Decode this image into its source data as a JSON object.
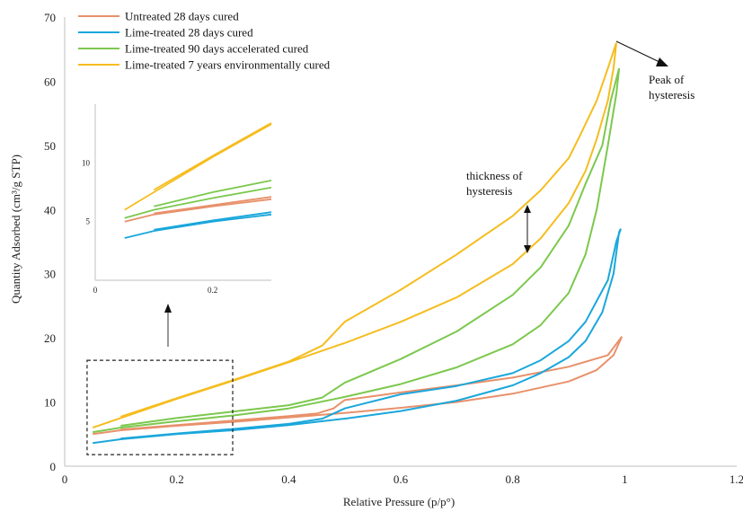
{
  "chart_data": {
    "type": "line",
    "xlabel": "Relative Pressure (p/p°)",
    "ylabel": "Quantity Adsorbed (cm³/g STP)",
    "xlim": [
      0,
      1.2
    ],
    "ylim": [
      0,
      70
    ],
    "xticks": [
      0,
      0.2,
      0.4,
      0.6,
      0.8,
      1,
      1.2
    ],
    "xtick_labels": [
      "0",
      "0.2",
      "0.4",
      "0.6",
      "0.8",
      "1",
      "1.2"
    ],
    "yticks": [
      0,
      10,
      20,
      30,
      40,
      50,
      60,
      70
    ],
    "ytick_labels": [
      "0",
      "10",
      "20",
      "30",
      "40",
      "50",
      "60",
      "70"
    ],
    "legend_position": "top-left",
    "series": [
      {
        "name": "Untreated 28 days cured",
        "color": "#E8916B",
        "adsorption": [
          [
            0.05,
            5
          ],
          [
            0.1,
            5.6
          ],
          [
            0.2,
            6.3
          ],
          [
            0.3,
            6.9
          ],
          [
            0.4,
            7.6
          ],
          [
            0.5,
            8.3
          ],
          [
            0.6,
            9.1
          ],
          [
            0.7,
            10
          ],
          [
            0.8,
            11.3
          ],
          [
            0.9,
            13.2
          ],
          [
            0.95,
            15
          ],
          [
            0.98,
            17.3
          ],
          [
            0.995,
            20.2
          ]
        ],
        "desorption": [
          [
            0.995,
            20.2
          ],
          [
            0.97,
            17.3
          ],
          [
            0.9,
            15.5
          ],
          [
            0.8,
            13.8
          ],
          [
            0.7,
            12.6
          ],
          [
            0.6,
            11.5
          ],
          [
            0.5,
            10.3
          ],
          [
            0.48,
            9
          ],
          [
            0.45,
            8.2
          ],
          [
            0.4,
            7.8
          ],
          [
            0.3,
            7.1
          ],
          [
            0.2,
            6.4
          ],
          [
            0.1,
            5.7
          ]
        ]
      },
      {
        "name": "Lime-treated 28 days cured",
        "color": "#1AA7DB",
        "adsorption": [
          [
            0.05,
            3.6
          ],
          [
            0.1,
            4.2
          ],
          [
            0.2,
            5
          ],
          [
            0.3,
            5.6
          ],
          [
            0.4,
            6.4
          ],
          [
            0.5,
            7.4
          ],
          [
            0.6,
            8.6
          ],
          [
            0.7,
            10.2
          ],
          [
            0.8,
            12.6
          ],
          [
            0.85,
            14.5
          ],
          [
            0.9,
            17
          ],
          [
            0.93,
            19.5
          ],
          [
            0.96,
            24
          ],
          [
            0.98,
            30
          ],
          [
            0.99,
            36.5
          ],
          [
            0.993,
            37
          ]
        ],
        "desorption": [
          [
            0.993,
            37
          ],
          [
            0.985,
            35
          ],
          [
            0.97,
            29
          ],
          [
            0.93,
            22.5
          ],
          [
            0.9,
            19.5
          ],
          [
            0.85,
            16.5
          ],
          [
            0.8,
            14.5
          ],
          [
            0.7,
            12.5
          ],
          [
            0.6,
            11.2
          ],
          [
            0.5,
            9
          ],
          [
            0.46,
            7.4
          ],
          [
            0.4,
            6.6
          ],
          [
            0.3,
            5.8
          ],
          [
            0.2,
            5.1
          ],
          [
            0.1,
            4.3
          ]
        ]
      },
      {
        "name": "Lime-treated 90 days accelerated cured",
        "color": "#7CC84E",
        "adsorption": [
          [
            0.05,
            5.3
          ],
          [
            0.1,
            6
          ],
          [
            0.2,
            7
          ],
          [
            0.3,
            7.9
          ],
          [
            0.4,
            9
          ],
          [
            0.5,
            10.8
          ],
          [
            0.6,
            12.8
          ],
          [
            0.7,
            15.4
          ],
          [
            0.8,
            19
          ],
          [
            0.85,
            22
          ],
          [
            0.9,
            27
          ],
          [
            0.93,
            33
          ],
          [
            0.95,
            40
          ],
          [
            0.97,
            50
          ],
          [
            0.985,
            58
          ],
          [
            0.99,
            62
          ]
        ],
        "desorption": [
          [
            0.99,
            62
          ],
          [
            0.975,
            57
          ],
          [
            0.96,
            50
          ],
          [
            0.93,
            44
          ],
          [
            0.9,
            37.5
          ],
          [
            0.85,
            31
          ],
          [
            0.8,
            26.7
          ],
          [
            0.7,
            21
          ],
          [
            0.6,
            16.7
          ],
          [
            0.5,
            13
          ],
          [
            0.46,
            10.7
          ],
          [
            0.4,
            9.5
          ],
          [
            0.3,
            8.5
          ],
          [
            0.2,
            7.5
          ],
          [
            0.1,
            6.3
          ]
        ]
      },
      {
        "name": "Lime-treated 7 years environmentally cured",
        "color": "#F5BD1F",
        "adsorption": [
          [
            0.05,
            6
          ],
          [
            0.1,
            7.5
          ],
          [
            0.2,
            10.5
          ],
          [
            0.3,
            13.3
          ],
          [
            0.4,
            16.2
          ],
          [
            0.5,
            19.2
          ],
          [
            0.6,
            22.5
          ],
          [
            0.7,
            26.3
          ],
          [
            0.8,
            31.5
          ],
          [
            0.85,
            35.5
          ],
          [
            0.9,
            41
          ],
          [
            0.93,
            46
          ],
          [
            0.95,
            51
          ],
          [
            0.97,
            57
          ],
          [
            0.98,
            62
          ],
          [
            0.985,
            66
          ]
        ],
        "desorption": [
          [
            0.985,
            66
          ],
          [
            0.97,
            62
          ],
          [
            0.95,
            57
          ],
          [
            0.92,
            51.5
          ],
          [
            0.9,
            48
          ],
          [
            0.85,
            43
          ],
          [
            0.8,
            39
          ],
          [
            0.7,
            33
          ],
          [
            0.6,
            27.5
          ],
          [
            0.5,
            22.5
          ],
          [
            0.46,
            18.8
          ],
          [
            0.4,
            16.3
          ],
          [
            0.3,
            13.4
          ],
          [
            0.2,
            10.6
          ],
          [
            0.1,
            7.7
          ]
        ]
      }
    ],
    "annotations": [
      {
        "text_lines": [
          "Peak of",
          "hysteresis"
        ]
      },
      {
        "text_lines": [
          "thickness of",
          "hysteresis"
        ]
      }
    ],
    "inset": {
      "xlim": [
        0,
        0.3
      ],
      "ylim": [
        0,
        15
      ],
      "xticks": [
        0,
        0.2
      ],
      "xtick_labels": [
        "0",
        "0.2"
      ],
      "yticks": [
        5,
        10
      ],
      "ytick_labels": [
        "5",
        "10"
      ],
      "zoom_box": {
        "xlim": [
          0.04,
          0.3
        ],
        "ylim": [
          1.8,
          16.5
        ]
      }
    }
  }
}
